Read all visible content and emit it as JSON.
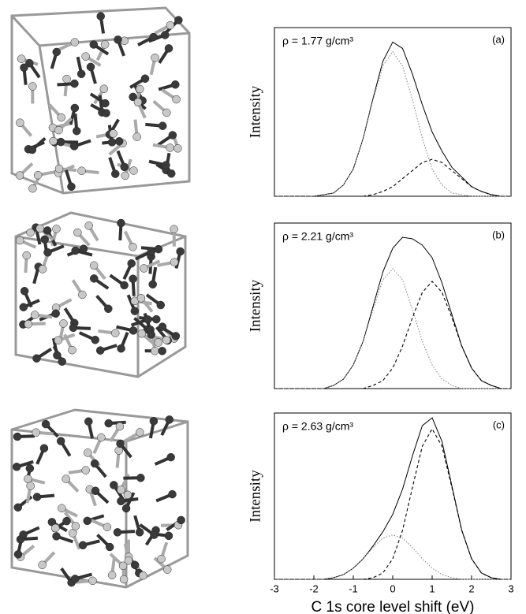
{
  "chart_data": [
    {
      "type": "line",
      "annotation": "ρ = 1.77 g/cm³",
      "panel_label": "(a)",
      "ylabel": "Intensity",
      "xlim": [
        -3,
        3
      ],
      "ylim": [
        0,
        1.05
      ],
      "x": [
        -3,
        -2.75,
        -2.5,
        -2.25,
        -2,
        -1.75,
        -1.5,
        -1.25,
        -1,
        -0.75,
        -0.5,
        -0.25,
        0,
        0.25,
        0.5,
        0.75,
        1,
        1.25,
        1.5,
        1.75,
        2,
        2.25,
        2.5,
        2.75,
        3
      ],
      "series": [
        {
          "color": "#000000",
          "style": "solid",
          "values": [
            0,
            0,
            0,
            0,
            0,
            0.01,
            0.02,
            0.07,
            0.17,
            0.36,
            0.61,
            0.84,
            0.96,
            0.92,
            0.76,
            0.57,
            0.4,
            0.28,
            0.18,
            0.12,
            0.06,
            0.03,
            0.01,
            0,
            0
          ]
        },
        {
          "color": "#888888",
          "style": "dotted",
          "values": [
            0,
            0,
            0,
            0,
            0,
            0.01,
            0.02,
            0.07,
            0.17,
            0.36,
            0.6,
            0.81,
            0.9,
            0.81,
            0.6,
            0.36,
            0.17,
            0.07,
            0.02,
            0.01,
            0,
            0,
            0,
            0,
            0
          ]
        },
        {
          "color": "#000000",
          "style": "dashed",
          "values": [
            0,
            0,
            0,
            0,
            0,
            0,
            0,
            0,
            0,
            0,
            0.01,
            0.03,
            0.06,
            0.11,
            0.16,
            0.21,
            0.23,
            0.21,
            0.16,
            0.11,
            0.06,
            0.03,
            0.01,
            0,
            0
          ]
        }
      ]
    },
    {
      "type": "line",
      "annotation": "ρ = 2.21 g/cm³",
      "panel_label": "(b)",
      "ylabel": "Intensity",
      "xlim": [
        -3,
        3
      ],
      "ylim": [
        0,
        1.05
      ],
      "x": [
        -3,
        -2.75,
        -2.5,
        -2.25,
        -2,
        -1.75,
        -1.5,
        -1.25,
        -1,
        -0.75,
        -0.5,
        -0.25,
        0,
        0.25,
        0.5,
        0.75,
        1,
        1.25,
        1.5,
        1.75,
        2,
        2.25,
        2.5,
        2.75,
        3
      ],
      "series": [
        {
          "color": "#000000",
          "style": "solid",
          "values": [
            0,
            0,
            0,
            0,
            0,
            0,
            0.02,
            0.06,
            0.15,
            0.3,
            0.52,
            0.74,
            0.89,
            0.96,
            0.95,
            0.91,
            0.83,
            0.67,
            0.47,
            0.27,
            0.13,
            0.05,
            0.02,
            0,
            0
          ]
        },
        {
          "color": "#888888",
          "style": "dotted",
          "values": [
            0,
            0,
            0,
            0,
            0,
            0,
            0.02,
            0.06,
            0.15,
            0.3,
            0.5,
            0.69,
            0.76,
            0.69,
            0.5,
            0.3,
            0.15,
            0.06,
            0.02,
            0,
            0,
            0,
            0,
            0,
            0
          ]
        },
        {
          "color": "#000000",
          "style": "dashed",
          "values": [
            0,
            0,
            0,
            0,
            0,
            0,
            0,
            0,
            0,
            0,
            0.02,
            0.05,
            0.13,
            0.27,
            0.45,
            0.61,
            0.68,
            0.61,
            0.45,
            0.27,
            0.13,
            0.05,
            0.02,
            0,
            0
          ]
        }
      ]
    },
    {
      "type": "line",
      "annotation": "ρ = 2.63 g/cm³",
      "panel_label": "(c)",
      "ylabel": "Intensity",
      "xlabel": "C 1s core level shift (eV)",
      "xlim": [
        -3,
        3
      ],
      "ylim": [
        0,
        1.05
      ],
      "xticks": [
        -3,
        -2,
        -1,
        0,
        1,
        2,
        3
      ],
      "x": [
        -3,
        -2.75,
        -2.5,
        -2.25,
        -2,
        -1.75,
        -1.5,
        -1.25,
        -1,
        -0.75,
        -0.5,
        -0.25,
        0,
        0.25,
        0.5,
        0.75,
        1,
        1.25,
        1.5,
        1.75,
        2,
        2.25,
        2.5,
        2.75,
        3
      ],
      "series": [
        {
          "color": "#000000",
          "style": "solid",
          "values": [
            0,
            0,
            0,
            0,
            0,
            0,
            0.01,
            0.03,
            0.07,
            0.13,
            0.21,
            0.3,
            0.41,
            0.57,
            0.78,
            0.97,
            1.02,
            0.87,
            0.59,
            0.31,
            0.13,
            0.04,
            0.01,
            0,
            0
          ]
        },
        {
          "color": "#888888",
          "style": "dotted",
          "values": [
            0,
            0,
            0,
            0,
            0,
            0,
            0.01,
            0.03,
            0.07,
            0.13,
            0.2,
            0.26,
            0.28,
            0.26,
            0.2,
            0.13,
            0.07,
            0.03,
            0.01,
            0,
            0,
            0,
            0,
            0,
            0
          ]
        },
        {
          "color": "#000000",
          "style": "dashed",
          "values": [
            0,
            0,
            0,
            0,
            0,
            0,
            0,
            0,
            0,
            0,
            0.01,
            0.04,
            0.13,
            0.31,
            0.58,
            0.84,
            0.95,
            0.84,
            0.58,
            0.31,
            0.13,
            0.04,
            0.01,
            0,
            0
          ]
        }
      ]
    }
  ]
}
